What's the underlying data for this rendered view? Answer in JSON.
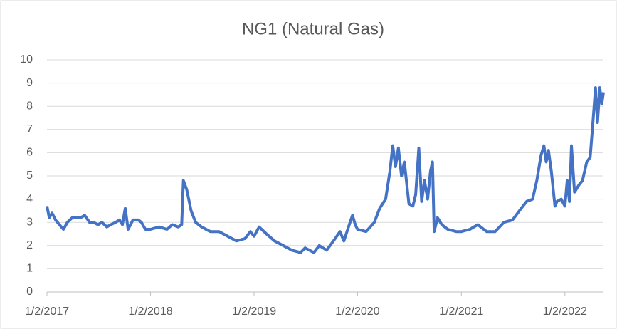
{
  "chart_data": {
    "type": "line",
    "title": "NG1 (Natural Gas)",
    "x": [
      "2017-01-02",
      "2017-01-10",
      "2017-01-20",
      "2017-02-01",
      "2017-02-15",
      "2017-03-01",
      "2017-03-15",
      "2017-04-01",
      "2017-04-15",
      "2017-05-01",
      "2017-05-15",
      "2017-06-01",
      "2017-06-15",
      "2017-07-01",
      "2017-07-15",
      "2017-08-01",
      "2017-08-15",
      "2017-09-01",
      "2017-09-15",
      "2017-09-25",
      "2017-10-05",
      "2017-10-15",
      "2017-11-01",
      "2017-11-20",
      "2017-12-01",
      "2017-12-15",
      "2018-01-02",
      "2018-02-01",
      "2018-03-01",
      "2018-03-20",
      "2018-04-10",
      "2018-04-22",
      "2018-04-28",
      "2018-05-10",
      "2018-05-25",
      "2018-06-10",
      "2018-07-01",
      "2018-08-01",
      "2018-09-01",
      "2018-10-01",
      "2018-11-01",
      "2018-12-01",
      "2018-12-20",
      "2019-01-02",
      "2019-01-20",
      "2019-02-15",
      "2019-03-15",
      "2019-04-15",
      "2019-05-15",
      "2019-06-15",
      "2019-07-01",
      "2019-08-01",
      "2019-08-20",
      "2019-09-15",
      "2019-10-15",
      "2019-11-01",
      "2019-11-15",
      "2019-12-01",
      "2019-12-15",
      "2019-12-25",
      "2020-01-02",
      "2020-02-01",
      "2020-03-01",
      "2020-03-20",
      "2020-04-10",
      "2020-04-25",
      "2020-05-05",
      "2020-05-15",
      "2020-05-25",
      "2020-06-05",
      "2020-06-15",
      "2020-07-01",
      "2020-07-15",
      "2020-07-25",
      "2020-08-05",
      "2020-08-15",
      "2020-08-25",
      "2020-09-05",
      "2020-09-15",
      "2020-09-22",
      "2020-09-28",
      "2020-10-10",
      "2020-10-25",
      "2020-11-15",
      "2020-12-15",
      "2021-01-02",
      "2021-02-01",
      "2021-03-01",
      "2021-04-01",
      "2021-05-01",
      "2021-06-01",
      "2021-07-01",
      "2021-08-01",
      "2021-08-20",
      "2021-09-10",
      "2021-09-25",
      "2021-10-10",
      "2021-10-20",
      "2021-10-28",
      "2021-11-05",
      "2021-11-15",
      "2021-11-28",
      "2021-12-05",
      "2021-12-20",
      "2022-01-02",
      "2022-01-10",
      "2022-01-18",
      "2022-01-25",
      "2022-02-05",
      "2022-02-20",
      "2022-03-05",
      "2022-03-20",
      "2022-04-01",
      "2022-04-10",
      "2022-04-20",
      "2022-04-27",
      "2022-05-05",
      "2022-05-12",
      "2022-05-18"
    ],
    "series": [
      {
        "name": "NG1",
        "color": "#4472c4",
        "values": [
          3.7,
          3.2,
          3.4,
          3.1,
          2.9,
          2.7,
          3.0,
          3.2,
          3.2,
          3.2,
          3.3,
          3.0,
          3.0,
          2.9,
          3.0,
          2.8,
          2.9,
          3.0,
          3.1,
          2.9,
          3.6,
          2.7,
          3.1,
          3.1,
          3.0,
          2.7,
          2.7,
          2.8,
          2.7,
          2.9,
          2.8,
          2.9,
          4.8,
          4.4,
          3.5,
          3.0,
          2.8,
          2.6,
          2.6,
          2.4,
          2.2,
          2.3,
          2.6,
          2.4,
          2.8,
          2.5,
          2.2,
          2.0,
          1.8,
          1.7,
          1.9,
          1.7,
          2.0,
          1.8,
          2.3,
          2.6,
          2.2,
          2.8,
          3.3,
          2.9,
          2.7,
          2.6,
          3.0,
          3.6,
          4.0,
          5.2,
          6.3,
          5.4,
          6.2,
          5.0,
          5.6,
          3.8,
          3.7,
          4.2,
          6.2,
          3.9,
          4.8,
          4.0,
          5.2,
          5.6,
          2.6,
          3.2,
          2.9,
          2.7,
          2.6,
          2.6,
          2.7,
          2.9,
          2.6,
          2.6,
          3.0,
          3.1,
          3.6,
          3.9,
          4.0,
          4.8,
          5.9,
          6.3,
          5.6,
          6.1,
          5.2,
          3.7,
          3.9,
          4.0,
          3.7,
          4.8,
          3.9,
          6.3,
          4.3,
          4.6,
          4.8,
          5.6,
          5.8,
          7.2,
          8.8,
          7.3,
          8.8,
          8.1,
          8.6
        ]
      }
    ],
    "xlim": [
      "2017-01-02",
      "2022-05-18"
    ],
    "xticks": [
      {
        "value": "2017-01-02",
        "label": "1/2/2017"
      },
      {
        "value": "2018-01-02",
        "label": "1/2/2018"
      },
      {
        "value": "2019-01-02",
        "label": "1/2/2019"
      },
      {
        "value": "2020-01-02",
        "label": "1/2/2020"
      },
      {
        "value": "2021-01-02",
        "label": "1/2/2021"
      },
      {
        "value": "2022-01-02",
        "label": "1/2/2022"
      }
    ],
    "ylim": [
      0,
      10
    ],
    "yticks": [
      0,
      1,
      2,
      3,
      4,
      5,
      6,
      7,
      8,
      9,
      10
    ],
    "grid": true
  }
}
